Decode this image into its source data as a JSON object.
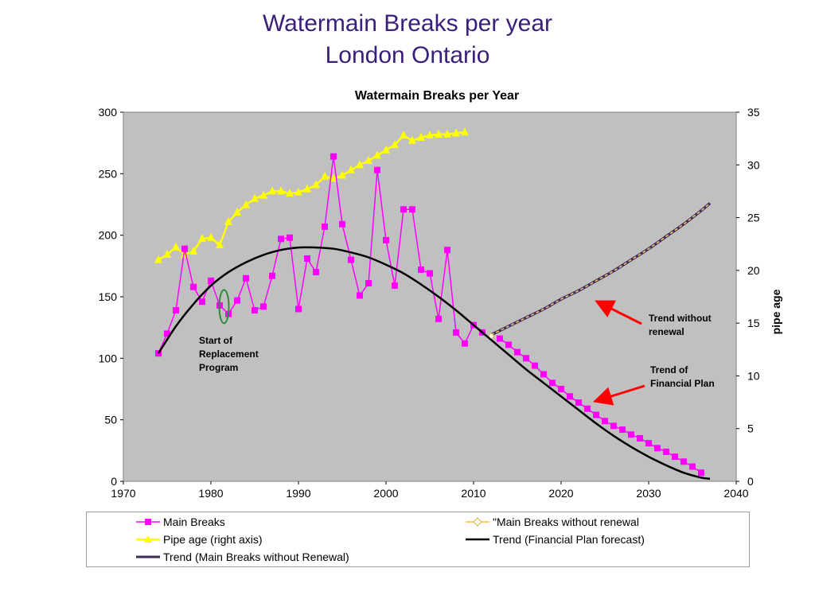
{
  "slide": {
    "title_line1": "Watermain Breaks per year",
    "title_line2": "London Ontario"
  },
  "chart_data": {
    "type": "line",
    "title": "Watermain Breaks per Year",
    "xlim": [
      1970,
      2040
    ],
    "ylim": [
      0,
      300
    ],
    "y2lim": [
      0,
      35
    ],
    "y2label": "pipe age",
    "x_ticks": [
      1970,
      1980,
      1990,
      2000,
      2010,
      2020,
      2030,
      2040
    ],
    "y_ticks": [
      0,
      50,
      100,
      150,
      200,
      250,
      300
    ],
    "y2_ticks": [
      0,
      5,
      10,
      15,
      20,
      25,
      30,
      35
    ],
    "grid": false,
    "legend_position": "bottom",
    "colors": {
      "plot_bg": "#c0c0c0",
      "main_breaks": "#ff00ff",
      "pipe_age": "#ffff00",
      "trend_fin": "#000000",
      "trend_no_renewal": "#3d2b5c",
      "no_renewal_dash": "#ffcc66",
      "arrow": "#ff0000",
      "oval": "#2e8b3a"
    },
    "series": [
      {
        "name": "Main Breaks",
        "axis": "left",
        "marker": "square",
        "x": [
          1974,
          1975,
          1976,
          1977,
          1978,
          1979,
          1980,
          1981,
          1982,
          1983,
          1984,
          1985,
          1986,
          1987,
          1988,
          1989,
          1990,
          1991,
          1992,
          1993,
          1994,
          1995,
          1996,
          1997,
          1998,
          1999,
          2000,
          2001,
          2002,
          2003,
          2004,
          2005,
          2006,
          2007,
          2008,
          2009,
          2010,
          2011,
          2012,
          2013,
          2014,
          2015,
          2016,
          2017,
          2018,
          2019,
          2020,
          2021,
          2022,
          2023,
          2024,
          2025,
          2026,
          2027,
          2028,
          2029,
          2030,
          2031,
          2032,
          2033,
          2034,
          2035,
          2036
        ],
        "y": [
          104,
          120,
          139,
          189,
          158,
          146,
          163,
          143,
          136,
          147,
          165,
          139,
          142,
          167,
          197,
          198,
          140,
          181,
          170,
          207,
          264,
          209,
          180,
          151,
          161,
          253,
          196,
          159,
          221,
          221,
          172,
          169,
          132,
          188,
          121,
          112,
          127,
          121,
          null,
          116,
          111,
          105,
          100,
          94,
          87,
          80,
          75,
          69,
          64,
          59,
          54,
          49,
          45,
          42,
          38,
          35,
          31,
          27,
          24,
          20,
          16,
          12,
          7
        ]
      },
      {
        "name": "\"Main Breaks without renewal",
        "axis": "left",
        "marker": "diamond",
        "x": [
          2012,
          2015,
          2020,
          2025,
          2030,
          2035,
          2037
        ],
        "y": [
          118,
          129,
          148,
          170,
          194,
          221,
          236
        ]
      },
      {
        "name": "Pipe age (right axis)",
        "axis": "right",
        "marker": "triangle",
        "x": [
          1974,
          1975,
          1976,
          1977,
          1978,
          1979,
          1980,
          1981,
          1982,
          1983,
          1984,
          1985,
          1986,
          1987,
          1988,
          1989,
          1990,
          1991,
          1992,
          1993,
          1994,
          1995,
          1996,
          1997,
          1998,
          1999,
          2000,
          2001,
          2002,
          2003,
          2004,
          2005,
          2006,
          2007,
          2008,
          2009
        ],
        "y": [
          21.0,
          21.5,
          22.2,
          21.5,
          21.8,
          23.0,
          23.1,
          22.4,
          24.6,
          25.5,
          26.2,
          26.8,
          27.1,
          27.5,
          27.5,
          27.3,
          27.4,
          27.7,
          28.1,
          28.9,
          28.7,
          29.0,
          29.5,
          30.0,
          30.4,
          30.9,
          31.4,
          31.9,
          32.8,
          32.3,
          32.6,
          32.8,
          32.9,
          32.9,
          33.0,
          33.1
        ]
      },
      {
        "name": "Trend (Financial Plan forecast)",
        "axis": "left",
        "marker": "none",
        "x": [
          1974,
          1976,
          1978,
          1980,
          1982,
          1984,
          1986,
          1988,
          1990,
          1992,
          1994,
          1996,
          1998,
          2000,
          2002,
          2004,
          2006,
          2008,
          2010,
          2012,
          2014,
          2016,
          2018,
          2020,
          2022,
          2024,
          2026,
          2028,
          2030,
          2032,
          2034,
          2036,
          2037
        ],
        "y": [
          104,
          126,
          144,
          159,
          170,
          178,
          184,
          188,
          190,
          190,
          189,
          186,
          182,
          176,
          169,
          160,
          150,
          139,
          127,
          115,
          103,
          91,
          80,
          69,
          58,
          47,
          37,
          28,
          20,
          13,
          7,
          3,
          2
        ]
      },
      {
        "name": "Trend (Main Breaks without Renewal)",
        "axis": "left",
        "marker": "none",
        "x": [
          2012,
          2014,
          2016,
          2018,
          2020,
          2022,
          2024,
          2026,
          2028,
          2030,
          2032,
          2034,
          2036,
          2037
        ],
        "y": [
          119,
          126,
          133,
          140,
          148,
          155,
          163,
          171,
          180,
          189,
          199,
          209,
          220,
          226
        ]
      }
    ],
    "annotations": [
      {
        "id": "start-replacement",
        "text": [
          "Start of",
          "Replacement",
          "Program"
        ]
      },
      {
        "id": "trend-no-renewal",
        "text": [
          "Trend without",
          "renewal"
        ]
      },
      {
        "id": "trend-financial",
        "text": [
          "Trend of",
          "Financial Plan"
        ]
      }
    ]
  },
  "legend": {
    "main_breaks": "Main Breaks",
    "no_renewal": "\"Main Breaks without renewal",
    "pipe_age": "Pipe age (right axis)",
    "trend_fin": "Trend (Financial Plan forecast)",
    "trend_no_renewal": "Trend (Main Breaks without Renewal)"
  }
}
